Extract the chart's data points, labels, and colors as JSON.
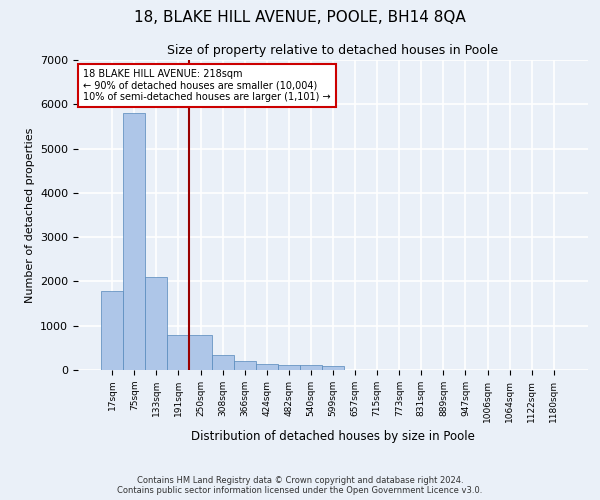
{
  "title1": "18, BLAKE HILL AVENUE, POOLE, BH14 8QA",
  "title2": "Size of property relative to detached houses in Poole",
  "xlabel": "Distribution of detached houses by size in Poole",
  "ylabel": "Number of detached properties",
  "bar_labels": [
    "17sqm",
    "75sqm",
    "133sqm",
    "191sqm",
    "250sqm",
    "308sqm",
    "366sqm",
    "424sqm",
    "482sqm",
    "540sqm",
    "599sqm",
    "657sqm",
    "715sqm",
    "773sqm",
    "831sqm",
    "889sqm",
    "947sqm",
    "1006sqm",
    "1064sqm",
    "1122sqm",
    "1180sqm"
  ],
  "bar_values": [
    1780,
    5800,
    2090,
    800,
    800,
    340,
    195,
    130,
    115,
    115,
    80,
    0,
    0,
    0,
    0,
    0,
    0,
    0,
    0,
    0,
    0
  ],
  "bar_color": "#aec6e8",
  "bar_edge_color": "#5588bb",
  "vline_x": 3.5,
  "vline_color": "#990000",
  "ylim": [
    0,
    7000
  ],
  "yticks": [
    0,
    1000,
    2000,
    3000,
    4000,
    5000,
    6000,
    7000
  ],
  "annotation_text": "18 BLAKE HILL AVENUE: 218sqm\n← 90% of detached houses are smaller (10,004)\n10% of semi-detached houses are larger (1,101) →",
  "annotation_box_color": "#ffffff",
  "annotation_box_edge": "#cc0000",
  "footer1": "Contains HM Land Registry data © Crown copyright and database right 2024.",
  "footer2": "Contains public sector information licensed under the Open Government Licence v3.0.",
  "bg_color": "#eaf0f8",
  "plot_bg_color": "#eaf0f8",
  "grid_color": "#ffffff",
  "title1_fontsize": 11,
  "title2_fontsize": 9
}
